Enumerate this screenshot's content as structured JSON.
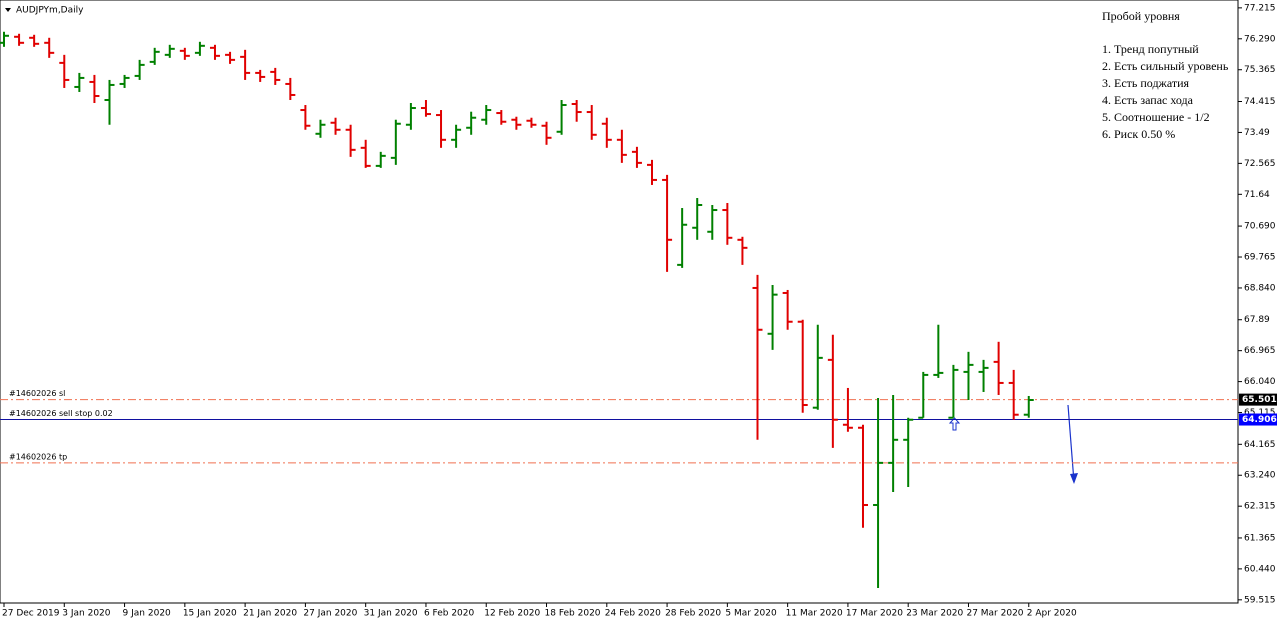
{
  "chart_data": {
    "type": "ohlc",
    "title": "AUDJPYm,Daily",
    "up_color": "#008000",
    "down_color": "#e00000",
    "categories": [
      "27 Dec 2019",
      null,
      null,
      null,
      "3 Jan 2020",
      null,
      null,
      null,
      "9 Jan 2020",
      null,
      null,
      null,
      "15 Jan 2020",
      null,
      null,
      null,
      "21 Jan 2020",
      null,
      null,
      null,
      "27 Jan 2020",
      null,
      null,
      null,
      "31 Jan 2020",
      null,
      null,
      null,
      "6 Feb 2020",
      null,
      null,
      null,
      "12 Feb 2020",
      null,
      null,
      null,
      "18 Feb 2020",
      null,
      null,
      null,
      "24 Feb 2020",
      null,
      null,
      null,
      "28 Feb 2020",
      null,
      null,
      null,
      "5 Mar 2020",
      null,
      null,
      null,
      "11 Mar 2020",
      null,
      null,
      null,
      "17 Mar 2020",
      null,
      null,
      null,
      "23 Mar 2020",
      null,
      null,
      null,
      "27 Mar 2020",
      null,
      null,
      null,
      "2 Apr 2020"
    ],
    "open": [
      76.17,
      76.35,
      76.32,
      76.17,
      75.57,
      74.85,
      75.0,
      74.46,
      74.94,
      75.18,
      75.6,
      75.81,
      75.93,
      75.87,
      76.02,
      75.81,
      75.75,
      75.27,
      75.3,
      74.94,
      74.16,
      73.45,
      73.78,
      73.57,
      73.03,
      72.49,
      72.73,
      73.72,
      74.22,
      74.01,
      73.27,
      73.63,
      73.87,
      74.07,
      73.87,
      73.84,
      73.69,
      73.51,
      74.34,
      74.1,
      73.75,
      73.27,
      72.91,
      72.52,
      72.07,
      69.53,
      70.64,
      70.52,
      71.17,
      70.28,
      68.84,
      67.47,
      68.69,
      67.83,
      65.26,
      66.69,
      64.75,
      64.66,
      62.35,
      63.61,
      64.3,
      64.96,
      66.24,
      64.96,
      66.33,
      66.33,
      66.63,
      66.0,
      65.05
    ],
    "high": [
      76.5,
      76.44,
      76.41,
      76.32,
      75.81,
      75.27,
      75.21,
      75.06,
      75.21,
      75.66,
      76.02,
      76.11,
      76.02,
      76.2,
      76.11,
      75.9,
      75.96,
      75.36,
      75.42,
      75.12,
      74.31,
      73.87,
      73.93,
      73.72,
      73.27,
      72.91,
      73.87,
      74.37,
      74.46,
      74.16,
      73.72,
      74.11,
      74.31,
      74.16,
      73.96,
      73.93,
      73.81,
      74.46,
      74.46,
      74.31,
      73.93,
      73.57,
      73.06,
      72.67,
      72.22,
      71.23,
      71.53,
      71.32,
      71.38,
      70.37,
      69.23,
      68.93,
      68.78,
      67.89,
      67.74,
      67.44,
      65.85,
      64.75,
      65.55,
      65.64,
      64.96,
      66.33,
      67.74,
      66.54,
      66.93,
      66.69,
      67.23,
      66.39,
      65.61
    ],
    "low": [
      76.05,
      76.08,
      76.05,
      75.72,
      74.82,
      74.7,
      74.37,
      73.72,
      74.82,
      75.06,
      75.51,
      75.72,
      75.66,
      75.78,
      75.66,
      75.54,
      75.06,
      75.0,
      74.91,
      74.46,
      73.57,
      73.33,
      73.42,
      72.76,
      72.43,
      72.43,
      72.52,
      73.57,
      73.96,
      73.03,
      73.03,
      73.42,
      73.72,
      73.72,
      73.57,
      73.63,
      73.12,
      73.42,
      73.81,
      73.27,
      73.03,
      72.58,
      72.43,
      71.92,
      69.32,
      69.44,
      70.28,
      70.28,
      70.13,
      69.53,
      64.3,
      66.99,
      67.59,
      65.11,
      65.2,
      64.06,
      64.54,
      61.67,
      59.87,
      62.74,
      62.89,
      64.96,
      66.15,
      64.96,
      65.49,
      65.73,
      65.64,
      64.9,
      64.96
    ],
    "close": [
      76.38,
      76.17,
      76.14,
      75.87,
      75.06,
      75.12,
      74.58,
      74.91,
      75.12,
      75.51,
      75.9,
      75.99,
      75.78,
      76.08,
      75.78,
      75.66,
      75.27,
      75.15,
      75.06,
      74.61,
      73.69,
      73.72,
      73.57,
      72.97,
      72.49,
      72.79,
      73.75,
      74.22,
      74.04,
      73.27,
      73.57,
      73.93,
      74.16,
      73.81,
      73.72,
      73.72,
      73.33,
      74.31,
      74.1,
      73.42,
      73.27,
      72.82,
      72.58,
      72.07,
      70.28,
      70.73,
      71.32,
      71.17,
      70.34,
      70.04,
      67.59,
      68.64,
      67.83,
      65.34,
      66.75,
      64.9,
      64.66,
      62.35,
      63.61,
      64.3,
      64.9,
      66.24,
      66.3,
      66.39,
      66.54,
      66.45,
      66.0,
      65.05,
      65.49
    ],
    "ylim": [
      59.42,
      77.45
    ],
    "yticks": [
      77.215,
      {
        "value": 76.29,
        "label": "76.290"
      },
      75.365,
      74.415,
      73.49,
      72.565,
      71.64,
      {
        "value": 70.69,
        "label": "70.690"
      },
      69.765,
      {
        "value": 68.84,
        "label": "68.840"
      },
      67.89,
      66.965,
      {
        "value": 66.04,
        "label": "66.040"
      },
      65.115,
      64.165,
      {
        "value": 63.24,
        "label": "63.240"
      },
      62.315,
      61.365,
      {
        "value": 60.44,
        "label": "60.440"
      },
      59.515
    ],
    "levels": [
      {
        "label": "#14602026 sl",
        "value": 65.501,
        "color": "#f07050",
        "tag_color": "#000000"
      },
      {
        "label": "#14602026 sell stop 0.02",
        "value": 64.906,
        "color": "#1010a0",
        "tag_color": "#0000ff"
      },
      {
        "label": "#14602026 tp",
        "value": 63.61,
        "color": "#f07050"
      }
    ],
    "note": {
      "title": "Пробой уровня",
      "lines": [
        "1. Тренд попутный",
        "2. Есть сильный уровень",
        "3. Есть поджатия",
        "4. Есть запас хода",
        "5. Соотношение - 1/2",
        "6. Риск 0.50 %"
      ]
    }
  }
}
